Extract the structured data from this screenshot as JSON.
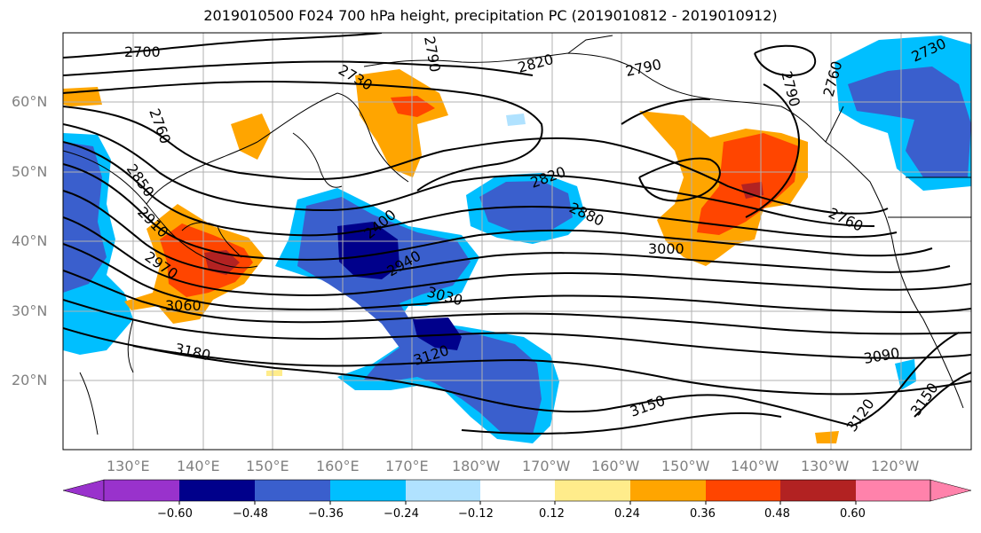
{
  "title": "2019010500 F024 700 hPa height, precipitation PC (2019010812 - 2019010912)",
  "latitude_labels": [
    "60°N",
    "50°N",
    "40°N",
    "30°N",
    "20°N"
  ],
  "longitude_labels": [
    "130°E",
    "140°E",
    "150°E",
    "160°E",
    "170°E",
    "180°W",
    "170°W",
    "160°W",
    "150°W",
    "140°W",
    "130°W",
    "120°W"
  ],
  "contour_labels": [
    "2700",
    "2730",
    "2790",
    "2820",
    "2790",
    "2730",
    "2760",
    "2760",
    "2790",
    "2850",
    "2910",
    "2970",
    "3060",
    "2820",
    "2880",
    "2940",
    "2400",
    "3000",
    "2760",
    "3030",
    "3120",
    "3180",
    "3090",
    "3150",
    "3120",
    "3150"
  ],
  "colorbar": {
    "tick_labels": [
      "−0.60",
      "−0.48",
      "−0.36",
      "−0.24",
      "−0.12",
      "0.12",
      "0.24",
      "0.36",
      "0.48",
      "0.60"
    ],
    "colors": [
      "#9932CC",
      "#00008B",
      "#3A5FCD",
      "#00BFFF",
      "#B0E2FF",
      "#FFFFFF",
      "#FFEC8B",
      "#FFA500",
      "#FF4500",
      "#B22222",
      "#FF82AB"
    ]
  }
}
